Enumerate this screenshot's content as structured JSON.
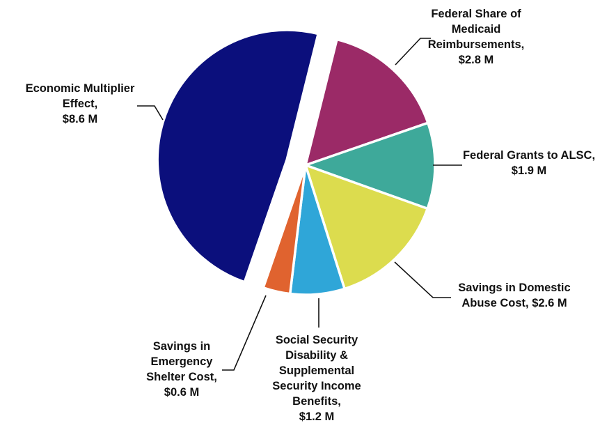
{
  "chart_data": {
    "type": "pie",
    "title": "",
    "legend": "none",
    "slices": [
      {
        "label": "Economic Multiplier Effect, $8.6 M",
        "label_lines": [
          "Economic Multiplier",
          "Effect,",
          "$8.6 M"
        ],
        "value": 8.6,
        "color": "#0b0f7c",
        "exploded": true
      },
      {
        "label": "Federal Share of Medicaid Reimbursements, $2.8 M",
        "label_lines": [
          "Federal Share of",
          "Medicaid",
          "Reimbursements,",
          "$2.8 M"
        ],
        "value": 2.8,
        "color": "#9b2a67",
        "exploded": false
      },
      {
        "label": "Federal Grants to ALSC, $1.9 M",
        "label_lines": [
          "Federal Grants to ALSC,",
          "$1.9 M"
        ],
        "value": 1.9,
        "color": "#3ea99a",
        "exploded": false
      },
      {
        "label": "Savings in Domestic Abuse Cost, $2.6 M",
        "label_lines": [
          "Savings in Domestic",
          "Abuse Cost, $2.6 M"
        ],
        "value": 2.6,
        "color": "#dcdc4e",
        "exploded": false
      },
      {
        "label": "Social Security Disability & Supplemental Security Income Benefits, $1.2 M",
        "label_lines": [
          "Social Security",
          "Disability &",
          "Supplemental",
          "Security Income",
          "Benefits,",
          "$1.2 M"
        ],
        "value": 1.2,
        "color": "#2fa6d8",
        "exploded": false
      },
      {
        "label": "Savings in Emergency Shelter Cost, $0.6 M",
        "label_lines": [
          "Savings in",
          "Emergency",
          "Shelter Cost,",
          "$0.6 M"
        ],
        "value": 0.6,
        "color": "#e0632f",
        "exploded": false
      }
    ]
  }
}
